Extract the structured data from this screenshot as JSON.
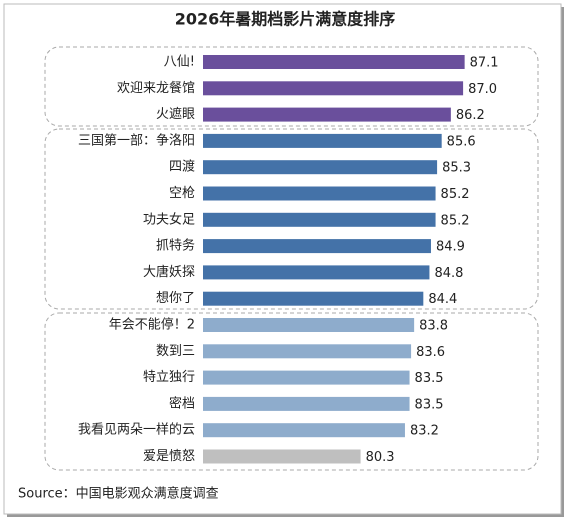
{
  "chart_data": {
    "type": "bar",
    "orientation": "horizontal",
    "title": "2026年暑期档影片满意度排序",
    "categories": [
      "八仙!",
      "欢迎来龙餐馆",
      "火遮眼",
      "三国第一部：争洛阳",
      "四渡",
      "空枪",
      "功夫女足",
      "抓特务",
      "大唐妖探",
      "想你了",
      "年会不能停！2",
      "数到三",
      "特立独行",
      "密档",
      "我看见两朵一样的云",
      "爱是愤怒"
    ],
    "values": [
      87.1,
      87.0,
      86.2,
      85.6,
      85.3,
      85.2,
      85.2,
      84.9,
      84.8,
      84.4,
      83.8,
      83.6,
      83.5,
      83.5,
      83.2,
      80.3
    ],
    "value_labels": [
      "87.1",
      "87.0",
      "86.2",
      "85.6",
      "85.3",
      "85.2",
      "85.2",
      "84.9",
      "84.8",
      "84.4",
      "83.8",
      "83.6",
      "83.5",
      "83.5",
      "83.2",
      "80.3"
    ],
    "colors": [
      "#6a4f9c",
      "#6a4f9c",
      "#6a4f9c",
      "#4472a8",
      "#4472a8",
      "#4472a8",
      "#4472a8",
      "#4472a8",
      "#4472a8",
      "#4472a8",
      "#8eaccc",
      "#8eaccc",
      "#8eaccc",
      "#8eaccc",
      "#8eaccc",
      "#bfbfbf"
    ],
    "xlim": [
      70,
      90
    ],
    "source": "Source：中国电影观众满意度调查"
  }
}
